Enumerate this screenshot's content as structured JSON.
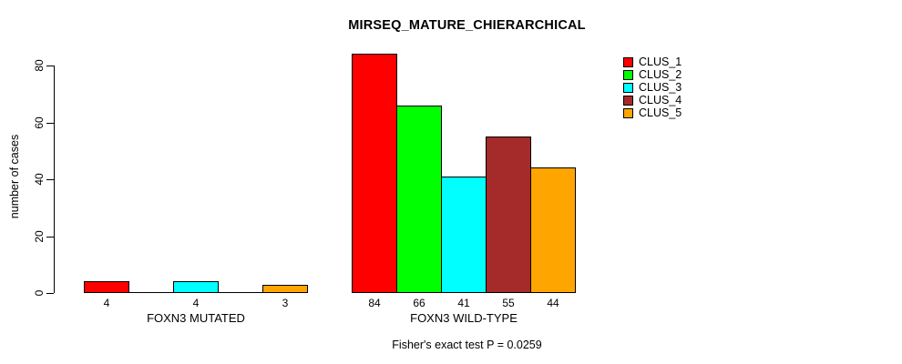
{
  "chart_data": {
    "type": "bar",
    "title": "MIRSEQ_MATURE_CHIERARCHICAL",
    "ylabel": "number of cases",
    "xlabel": "",
    "ylim": [
      0,
      80
    ],
    "yticks": [
      0,
      20,
      40,
      60,
      80
    ],
    "grid": false,
    "background": "#ffffff",
    "bar_border_color": "#000000",
    "categories": [
      "FOXN3 MUTATED",
      "FOXN3 WILD-TYPE"
    ],
    "series": [
      {
        "name": "CLUS_1",
        "color": "#ff0000",
        "values": [
          4,
          84
        ]
      },
      {
        "name": "CLUS_2",
        "color": "#00ff00",
        "values": [
          0,
          66
        ]
      },
      {
        "name": "CLUS_3",
        "color": "#00ffff",
        "values": [
          4,
          41
        ]
      },
      {
        "name": "CLUS_4",
        "color": "#a52a2a",
        "values": [
          0,
          55
        ]
      },
      {
        "name": "CLUS_5",
        "color": "#ffa500",
        "values": [
          3,
          44
        ]
      }
    ],
    "bar_value_labels": [
      [
        "4",
        "",
        "4",
        "",
        "3"
      ],
      [
        "84",
        "66",
        "41",
        "55",
        "44"
      ]
    ],
    "legend": {
      "position": "top-right",
      "entries": [
        "CLUS_1",
        "CLUS_2",
        "CLUS_3",
        "CLUS_4",
        "CLUS_5"
      ]
    },
    "annotation": "Fisher's exact test P = 0.0259"
  }
}
